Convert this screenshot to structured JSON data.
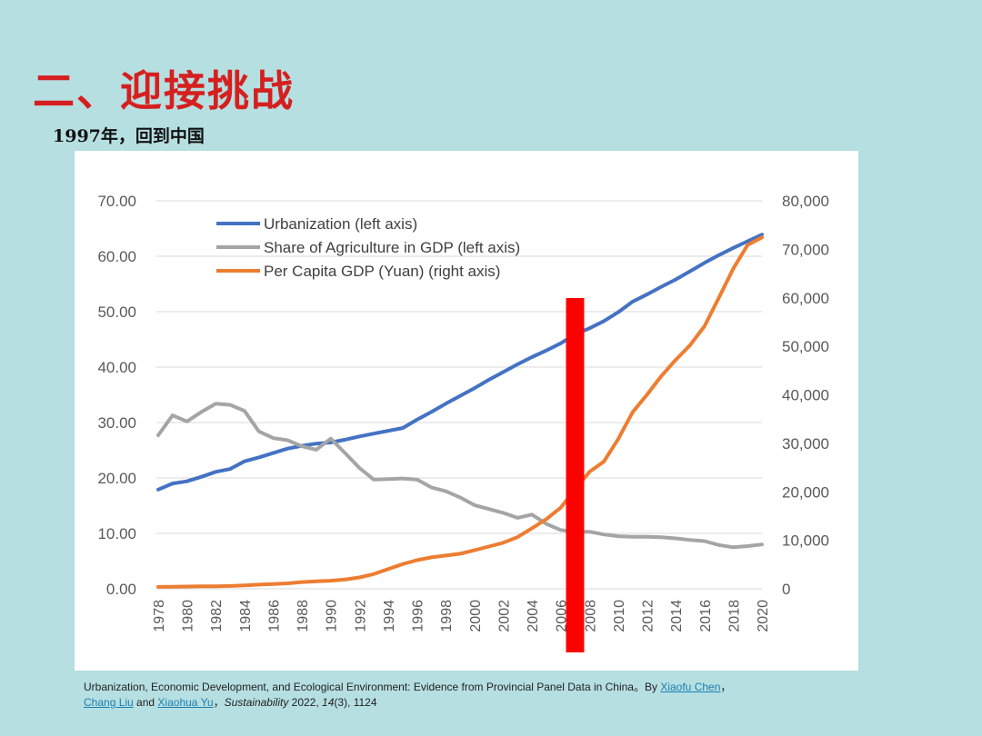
{
  "slide": {
    "title": "二、迎接挑战",
    "subtitle": "1997年，回到中国"
  },
  "citation": {
    "text_before": "Urbanization, Economic Development, and Ecological Environment: Evidence from Provincial Panel Data in China。By ",
    "author_1": "Xiaofu Chen",
    "sep_1": "，",
    "author_2": "Chang Liu",
    "and": " and ",
    "author_3": "Xiaohua Yu",
    "sep_2": "，",
    "journal": "Sustainability",
    "year": " 2022, ",
    "volume": "14",
    "issue_pages": "(3), 1124"
  },
  "colors": {
    "urbanization": "#4472c4",
    "agriculture": "#a5a5a5",
    "gdp": "#ed7d31",
    "marker": "#ff0000",
    "title": "#d61f1f"
  },
  "chart_data": {
    "type": "line",
    "title": "",
    "x": [
      1978,
      1979,
      1980,
      1981,
      1982,
      1983,
      1984,
      1985,
      1986,
      1987,
      1988,
      1989,
      1990,
      1991,
      1992,
      1993,
      1994,
      1995,
      1996,
      1997,
      1998,
      1999,
      2000,
      2001,
      2002,
      2003,
      2004,
      2005,
      2006,
      2007,
      2008,
      2009,
      2010,
      2011,
      2012,
      2013,
      2014,
      2015,
      2016,
      2017,
      2018,
      2019,
      2020
    ],
    "x_tick_labels": [
      "1978",
      "1980",
      "1982",
      "1984",
      "1986",
      "1988",
      "1990",
      "1992",
      "1994",
      "1996",
      "1998",
      "2000",
      "2002",
      "2004",
      "2006",
      "2008",
      "2010",
      "2012",
      "2014",
      "2016",
      "2018",
      "2020"
    ],
    "left_axis": {
      "ylim": [
        0,
        70
      ],
      "ticks": [
        "0.00",
        "10.00",
        "20.00",
        "30.00",
        "40.00",
        "50.00",
        "60.00",
        "70.00"
      ]
    },
    "right_axis": {
      "ylim": [
        0,
        80000
      ],
      "ticks": [
        "0",
        "10,000",
        "20,000",
        "30,000",
        "40,000",
        "50,000",
        "60,000",
        "70,000",
        "80,000"
      ]
    },
    "series": [
      {
        "name": "Urbanization (left axis)",
        "axis": "left",
        "values": [
          17.9,
          19.0,
          19.4,
          20.2,
          21.1,
          21.6,
          23.0,
          23.7,
          24.5,
          25.3,
          25.8,
          26.2,
          26.4,
          26.9,
          27.5,
          28.0,
          28.5,
          29.0,
          30.5,
          31.9,
          33.4,
          34.8,
          36.2,
          37.7,
          39.1,
          40.5,
          41.8,
          43.0,
          44.3,
          45.9,
          47.0,
          48.3,
          49.9,
          51.8,
          53.1,
          54.5,
          55.8,
          57.3,
          58.8,
          60.2,
          61.5,
          62.7,
          63.9
        ]
      },
      {
        "name": "Share of Agriculture in GDP (left axis)",
        "axis": "left",
        "values": [
          27.7,
          31.3,
          30.2,
          31.9,
          33.4,
          33.2,
          32.1,
          28.4,
          27.2,
          26.8,
          25.7,
          25.1,
          27.1,
          24.5,
          21.8,
          19.7,
          19.8,
          19.9,
          19.7,
          18.3,
          17.6,
          16.5,
          15.1,
          14.4,
          13.7,
          12.8,
          13.4,
          11.7,
          10.6,
          10.3,
          10.3,
          9.8,
          9.5,
          9.4,
          9.4,
          9.3,
          9.1,
          8.8,
          8.6,
          7.9,
          7.5,
          7.7,
          8.0
        ]
      },
      {
        "name": "Per Capita GDP (Yuan) (right axis)",
        "axis": "right",
        "values": [
          385,
          423,
          468,
          497,
          533,
          588,
          702,
          866,
          973,
          1123,
          1378,
          1536,
          1663,
          1912,
          2334,
          3027,
          4081,
          5091,
          5898,
          6481,
          6860,
          7229,
          7942,
          8717,
          9506,
          10666,
          12487,
          14368,
          16738,
          20505,
          24121,
          26222,
          30876,
          36403,
          40007,
          43852,
          47203,
          50251,
          54139,
          60014,
          66006,
          70892,
          72447
        ]
      }
    ],
    "annotation": {
      "type": "vertical-bar",
      "x": 2007,
      "color": "#ff0000"
    },
    "legend_position": "top-left",
    "grid": true
  }
}
